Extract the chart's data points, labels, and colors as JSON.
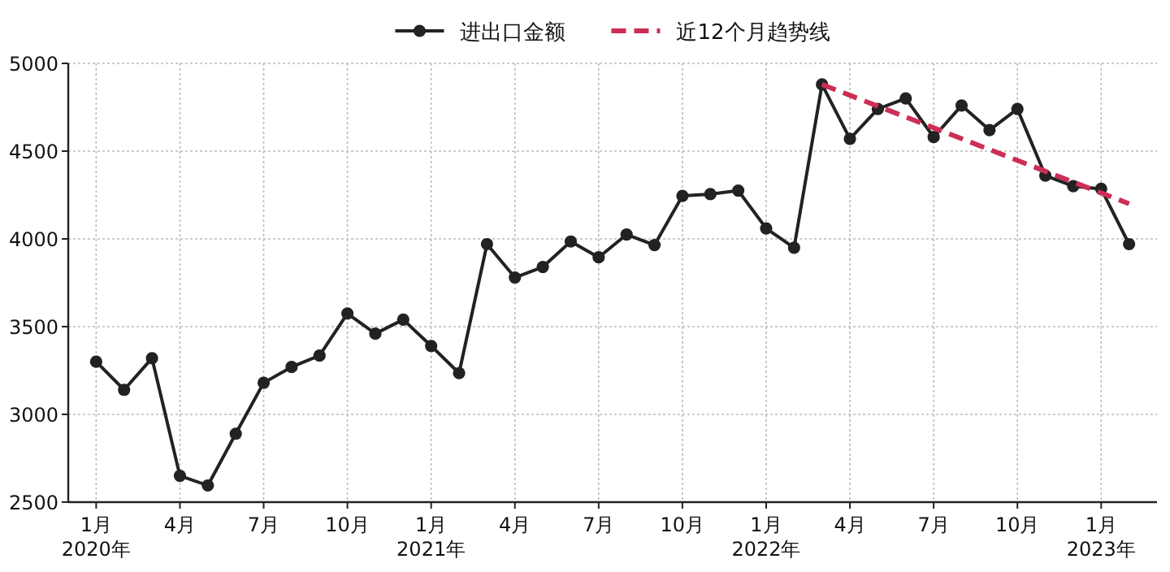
{
  "chart_data": {
    "type": "line",
    "x": [
      "2020-01",
      "2020-02",
      "2020-03",
      "2020-04",
      "2020-05",
      "2020-06",
      "2020-07",
      "2020-08",
      "2020-09",
      "2020-10",
      "2020-11",
      "2020-12",
      "2021-01",
      "2021-02",
      "2021-03",
      "2021-04",
      "2021-05",
      "2021-06",
      "2021-07",
      "2021-08",
      "2021-09",
      "2021-10",
      "2021-11",
      "2021-12",
      "2022-01",
      "2022-02",
      "2022-03",
      "2022-04",
      "2022-05",
      "2022-06",
      "2022-07",
      "2022-08",
      "2022-09",
      "2022-10",
      "2022-11",
      "2022-12",
      "2023-01",
      "2023-02"
    ],
    "series": [
      {
        "name": "进出口金额",
        "color": "#222222",
        "marker": "circle",
        "line_style": "solid",
        "values": [
          3300,
          3140,
          3320,
          2650,
          2595,
          2890,
          3180,
          3270,
          3335,
          3575,
          3460,
          3540,
          3390,
          3235,
          3970,
          3780,
          3840,
          3985,
          3895,
          4025,
          3965,
          4245,
          4255,
          4275,
          4060,
          3950,
          4880,
          4570,
          4740,
          4800,
          4580,
          4760,
          4620,
          4740,
          4360,
          4300,
          4285,
          3970
        ]
      },
      {
        "name": "近12个月趋势线",
        "color": "#cc2e55",
        "marker": "none",
        "line_style": "dashed",
        "x": [
          "2022-03",
          "2023-02"
        ],
        "values": [
          4880,
          4200
        ]
      }
    ],
    "xlim": [
      "2019-12",
      "2023-03"
    ],
    "xticks": [
      {
        "value": "2020-01",
        "label": "1月\n2020年"
      },
      {
        "value": "2020-04",
        "label": "4月"
      },
      {
        "value": "2020-07",
        "label": "7月"
      },
      {
        "value": "2020-10",
        "label": "10月"
      },
      {
        "value": "2021-01",
        "label": "1月\n2021年"
      },
      {
        "value": "2021-04",
        "label": "4月"
      },
      {
        "value": "2021-07",
        "label": "7月"
      },
      {
        "value": "2021-10",
        "label": "10月"
      },
      {
        "value": "2022-01",
        "label": "1月\n2022年"
      },
      {
        "value": "2022-04",
        "label": "4月"
      },
      {
        "value": "2022-07",
        "label": "7月"
      },
      {
        "value": "2022-10",
        "label": "10月"
      },
      {
        "value": "2023-01",
        "label": "1月\n2023年"
      }
    ],
    "ylim": [
      2500,
      5000
    ],
    "yticks": [
      2500,
      3000,
      3500,
      4000,
      4500,
      5000
    ],
    "grid": true,
    "legend": "top"
  }
}
